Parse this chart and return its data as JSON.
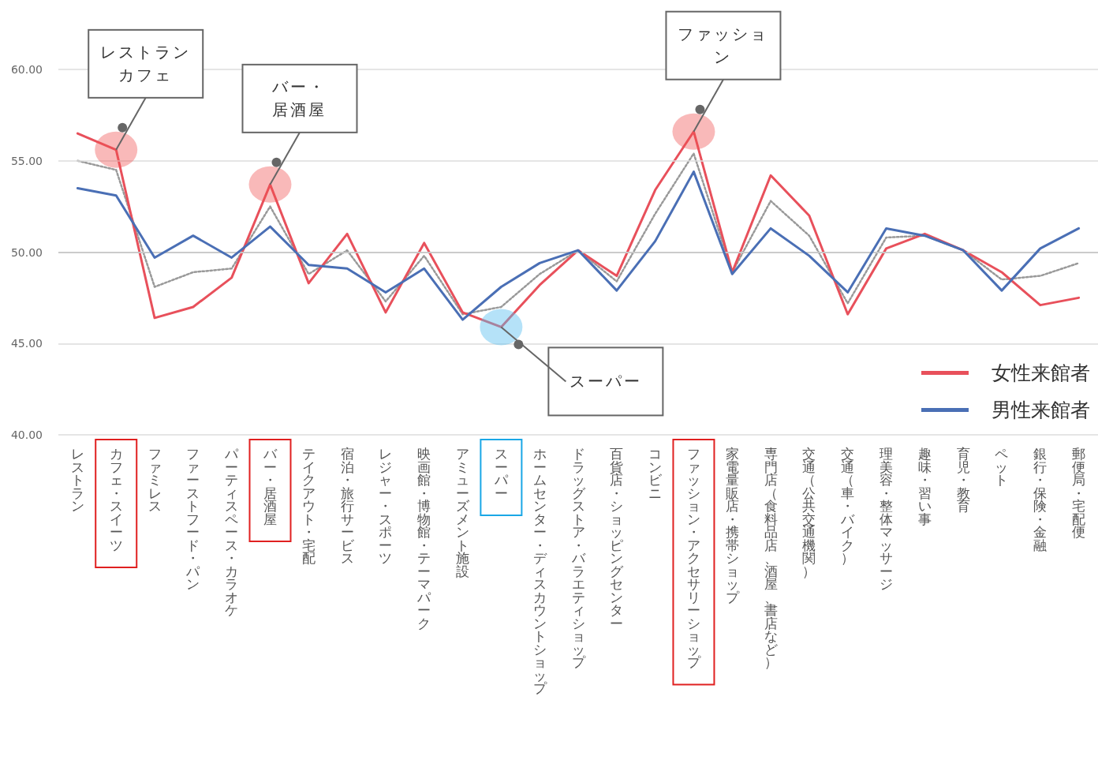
{
  "chart_data": {
    "type": "line",
    "categories": [
      "レストラン",
      "カフェ・スイーツ",
      "ファミレス",
      "ファーストフード・パン",
      "パーティスペース・カラオケ",
      "バー・居酒屋",
      "テイクアウト・宅配",
      "宿泊・旅行サービス",
      "レジャー・スポーツ",
      "映画館・博物館・テーマパーク",
      "アミューズメント施設",
      "スーパー",
      "ホームセンター・ディスカウントショップ",
      "ドラッグストア・バラエティショップ",
      "百貨店・ショッピングセンター",
      "コンビニ",
      "ファッション・アクセサリーショップ",
      "家電量販店・携帯ショップ",
      "専門店（食料品店、酒屋、書店など）",
      "交通（公共交通機関）",
      "交通（車・バイク）",
      "理美容・整体マッサージ",
      "趣味・習い事",
      "育児・教育",
      "ペット",
      "銀行・保険・金融",
      "郵便局・宅配便"
    ],
    "series": [
      {
        "color": "#999999",
        "line_style": "dotted",
        "values": [
          55.0,
          54.5,
          48.1,
          48.9,
          49.1,
          52.5,
          48.8,
          50.1,
          47.3,
          49.8,
          46.6,
          47.0,
          48.8,
          50.1,
          48.4,
          52.1,
          55.4,
          48.9,
          52.8,
          50.9,
          47.2,
          50.8,
          50.9,
          50.1,
          48.5,
          48.7,
          49.4
        ]
      },
      {
        "name": "女性来館者",
        "color": "#e8505b",
        "values": [
          56.5,
          55.6,
          46.4,
          47.0,
          48.6,
          53.7,
          48.3,
          51.0,
          46.7,
          50.5,
          46.7,
          45.9,
          48.2,
          50.1,
          48.7,
          53.4,
          56.6,
          48.9,
          54.2,
          52.0,
          46.6,
          50.2,
          51.0,
          50.1,
          48.9,
          47.1,
          47.5
        ]
      },
      {
        "name": "男性来館者",
        "color": "#4a6fb5",
        "values": [
          53.5,
          53.1,
          49.7,
          50.9,
          49.7,
          51.4,
          49.3,
          49.1,
          47.8,
          49.1,
          46.3,
          48.1,
          49.4,
          50.1,
          47.9,
          50.6,
          54.4,
          48.8,
          51.3,
          49.8,
          47.8,
          51.3,
          50.9,
          50.1,
          47.9,
          50.2,
          51.3
        ]
      }
    ],
    "ylim": [
      40,
      60
    ],
    "yticks": [
      {
        "value": 40,
        "label": "40.00"
      },
      {
        "value": 45,
        "label": "45.00"
      },
      {
        "value": 50,
        "label": "50.00"
      },
      {
        "value": 55,
        "label": "55.00"
      },
      {
        "value": 60,
        "label": "60.00"
      }
    ],
    "grid": "y",
    "legend": "bottom right",
    "marker": "none",
    "line_style": "solid",
    "ref_lines": [
      {
        "axis": "y",
        "value": 50,
        "color": "#777777"
      }
    ],
    "annotations": [
      {
        "text": "レストランカフェ",
        "x": "カフェ・スイーツ",
        "y": 55.6
      },
      {
        "text": "バー・居酒屋",
        "x": "バー・居酒屋",
        "y": 53.7
      },
      {
        "text": "ファッション",
        "x": "ファッション・アクセサリーショップ",
        "y": 56.6
      },
      {
        "text": "スーパー",
        "x": "スーパー",
        "y": 45.9
      }
    ]
  }
}
